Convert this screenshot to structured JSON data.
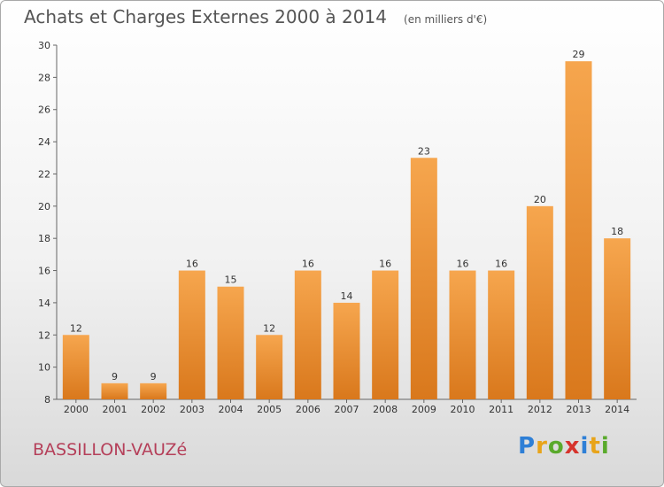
{
  "page": {
    "title": "Achats et Charges Externes 2000 à 2014",
    "unit": "(en milliers d'€)",
    "commune": "BASSILLON-VAUZé",
    "logo_letters": [
      {
        "ch": "P",
        "color": "#2e7fd6"
      },
      {
        "ch": "r",
        "color": "#e8a41a"
      },
      {
        "ch": "o",
        "color": "#5aaa2c"
      },
      {
        "ch": "x",
        "color": "#d6332c"
      },
      {
        "ch": "i",
        "color": "#2e7fd6"
      },
      {
        "ch": "t",
        "color": "#e8a41a"
      },
      {
        "ch": "i",
        "color": "#5aaa2c"
      }
    ]
  },
  "chart_data": {
    "type": "bar",
    "title": "Achats et Charges Externes 2000 à 2014",
    "categories": [
      "2000",
      "2001",
      "2002",
      "2003",
      "2004",
      "2005",
      "2006",
      "2007",
      "2008",
      "2009",
      "2010",
      "2011",
      "2012",
      "2013",
      "2014"
    ],
    "values": [
      12,
      9,
      9,
      16,
      15,
      12,
      16,
      14,
      16,
      23,
      16,
      16,
      20,
      29,
      18
    ],
    "value_labels": [
      "12",
      "9",
      "9",
      "16",
      "15",
      "12",
      "16",
      "14",
      "16",
      "23",
      "16",
      "16",
      "20",
      "29",
      "18"
    ],
    "ylim": [
      8,
      30
    ],
    "yticks": [
      8,
      10,
      12,
      14,
      16,
      18,
      20,
      22,
      24,
      26,
      28,
      30
    ],
    "grid": false,
    "bar_color_top": "#f6a64e",
    "bar_color_bottom": "#d9781c"
  }
}
